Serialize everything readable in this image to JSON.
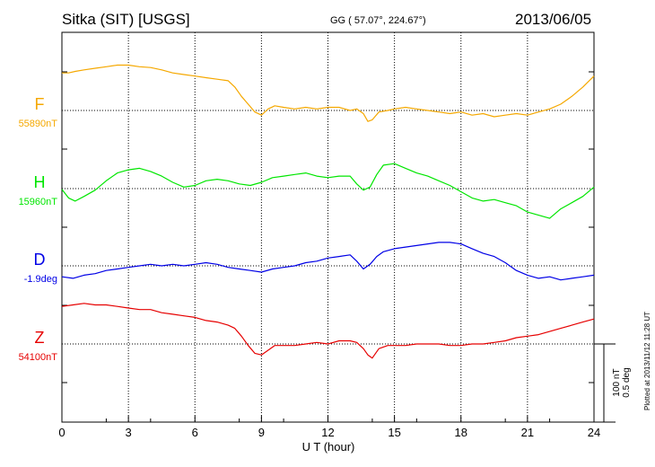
{
  "header": {
    "station": "Sitka (SIT)  [USGS]",
    "coords": "GG ( 57.07°, 224.67°)",
    "date": "2013/06/05"
  },
  "footer": {
    "plotted": "Plotted at 2013/11/12 11:28 UT"
  },
  "chart_data": {
    "type": "line",
    "title": "Sitka (SIT)  [USGS]",
    "xlabel": "U T (hour)",
    "xlim": [
      0,
      24
    ],
    "xticks": [
      0,
      3,
      6,
      9,
      12,
      15,
      18,
      21,
      24
    ],
    "grid": true,
    "scale_bar": {
      "line1": "100 nT",
      "line2": "0.5 deg"
    },
    "series": [
      {
        "name": "F",
        "baseline_label": "55890nT",
        "color": "#f5a800",
        "unit_offset": "nT",
        "x": [
          0,
          0.3,
          0.6,
          1,
          1.5,
          2,
          2.5,
          3,
          3.5,
          4,
          4.5,
          5,
          5.5,
          6,
          6.5,
          7,
          7.5,
          7.8,
          8.1,
          8.4,
          8.7,
          9.0,
          9.3,
          9.6,
          10,
          10.5,
          11,
          11.5,
          12,
          12.5,
          13,
          13.3,
          13.6,
          13.8,
          14,
          14.3,
          14.7,
          15,
          15.5,
          16,
          16.5,
          17,
          17.5,
          18,
          18.5,
          19,
          19.5,
          20,
          20.5,
          21,
          21.5,
          22,
          22.5,
          23,
          23.5,
          24
        ],
        "y": [
          48,
          48,
          50,
          52,
          54,
          56,
          58,
          58,
          56,
          55,
          52,
          48,
          46,
          44,
          42,
          40,
          38,
          30,
          18,
          8,
          -2,
          -6,
          2,
          6,
          4,
          2,
          4,
          2,
          4,
          4,
          0,
          2,
          -4,
          -14,
          -12,
          -2,
          0,
          2,
          4,
          2,
          0,
          -2,
          -4,
          -2,
          -6,
          -4,
          -8,
          -6,
          -4,
          -6,
          -2,
          2,
          8,
          18,
          30,
          44
        ]
      },
      {
        "name": "H",
        "baseline_label": "15960nT",
        "color": "#00e600",
        "unit_offset": "nT",
        "x": [
          0,
          0.3,
          0.6,
          1,
          1.5,
          2,
          2.5,
          3,
          3.5,
          4,
          4.5,
          5,
          5.5,
          6,
          6.5,
          7,
          7.5,
          8,
          8.5,
          9,
          9.5,
          10,
          10.5,
          11,
          11.5,
          12,
          12.5,
          13,
          13.3,
          13.6,
          13.9,
          14.2,
          14.5,
          15,
          15.5,
          16,
          16.5,
          17,
          17.5,
          18,
          18.5,
          19,
          19.5,
          20,
          20.5,
          21,
          21.5,
          22,
          22.5,
          23,
          23.5,
          24
        ],
        "y": [
          -1,
          -12,
          -16,
          -10,
          -2,
          10,
          20,
          24,
          26,
          22,
          16,
          8,
          2,
          4,
          10,
          12,
          10,
          6,
          4,
          8,
          14,
          16,
          18,
          20,
          16,
          14,
          16,
          16,
          6,
          -2,
          2,
          18,
          30,
          32,
          26,
          20,
          16,
          10,
          4,
          -4,
          -12,
          -16,
          -14,
          -18,
          -22,
          -30,
          -34,
          -38,
          -26,
          -18,
          -10,
          2
        ]
      },
      {
        "name": "D",
        "baseline_label": "-1.9deg",
        "color": "#0000e6",
        "unit_offset": "deg",
        "x": [
          0,
          0.5,
          1,
          1.5,
          2,
          2.5,
          3,
          3.5,
          4,
          4.5,
          5,
          5.5,
          6,
          6.5,
          7,
          7.5,
          8,
          8.5,
          9,
          9.5,
          10,
          10.5,
          11,
          11.5,
          12,
          12.5,
          13,
          13.3,
          13.6,
          13.9,
          14.2,
          14.5,
          15,
          15.5,
          16,
          16.5,
          17,
          17.5,
          18,
          18.5,
          19,
          19.5,
          20,
          20.5,
          21,
          21.5,
          22,
          22.5,
          23,
          23.5,
          24
        ],
        "y": [
          -0.07,
          -0.08,
          -0.06,
          -0.05,
          -0.03,
          -0.02,
          -0.01,
          0.0,
          0.01,
          0.0,
          0.01,
          0.0,
          0.01,
          0.02,
          0.01,
          -0.01,
          -0.02,
          -0.03,
          -0.04,
          -0.02,
          -0.01,
          0.0,
          0.02,
          0.03,
          0.05,
          0.06,
          0.07,
          0.03,
          -0.02,
          0.01,
          0.06,
          0.09,
          0.11,
          0.12,
          0.13,
          0.14,
          0.15,
          0.15,
          0.14,
          0.11,
          0.08,
          0.06,
          0.02,
          -0.03,
          -0.06,
          -0.08,
          -0.07,
          -0.09,
          -0.08,
          -0.07,
          -0.06
        ]
      },
      {
        "name": "Z",
        "baseline_label": "54100nT",
        "color": "#e60000",
        "unit_offset": "nT",
        "x": [
          0,
          0.5,
          1,
          1.5,
          2,
          2.5,
          3,
          3.5,
          4,
          4.5,
          5,
          5.5,
          6,
          6.5,
          7,
          7.5,
          7.8,
          8.1,
          8.4,
          8.7,
          9.0,
          9.3,
          9.6,
          10,
          10.5,
          11,
          11.5,
          12,
          12.5,
          13,
          13.3,
          13.6,
          13.8,
          14,
          14.3,
          14.7,
          15,
          15.5,
          16,
          16.5,
          17,
          17.5,
          18,
          18.5,
          19,
          19.5,
          20,
          20.5,
          21,
          21.5,
          22,
          22.5,
          23,
          23.5,
          24
        ],
        "y": [
          48,
          50,
          52,
          50,
          50,
          48,
          46,
          44,
          44,
          40,
          38,
          36,
          34,
          30,
          28,
          24,
          20,
          10,
          -2,
          -12,
          -14,
          -8,
          -2,
          -2,
          -2,
          0,
          2,
          0,
          4,
          4,
          2,
          -6,
          -14,
          -18,
          -6,
          -2,
          -2,
          -2,
          0,
          0,
          0,
          -2,
          -2,
          0,
          0,
          2,
          4,
          8,
          10,
          12,
          16,
          20,
          24,
          28,
          32
        ]
      }
    ]
  }
}
